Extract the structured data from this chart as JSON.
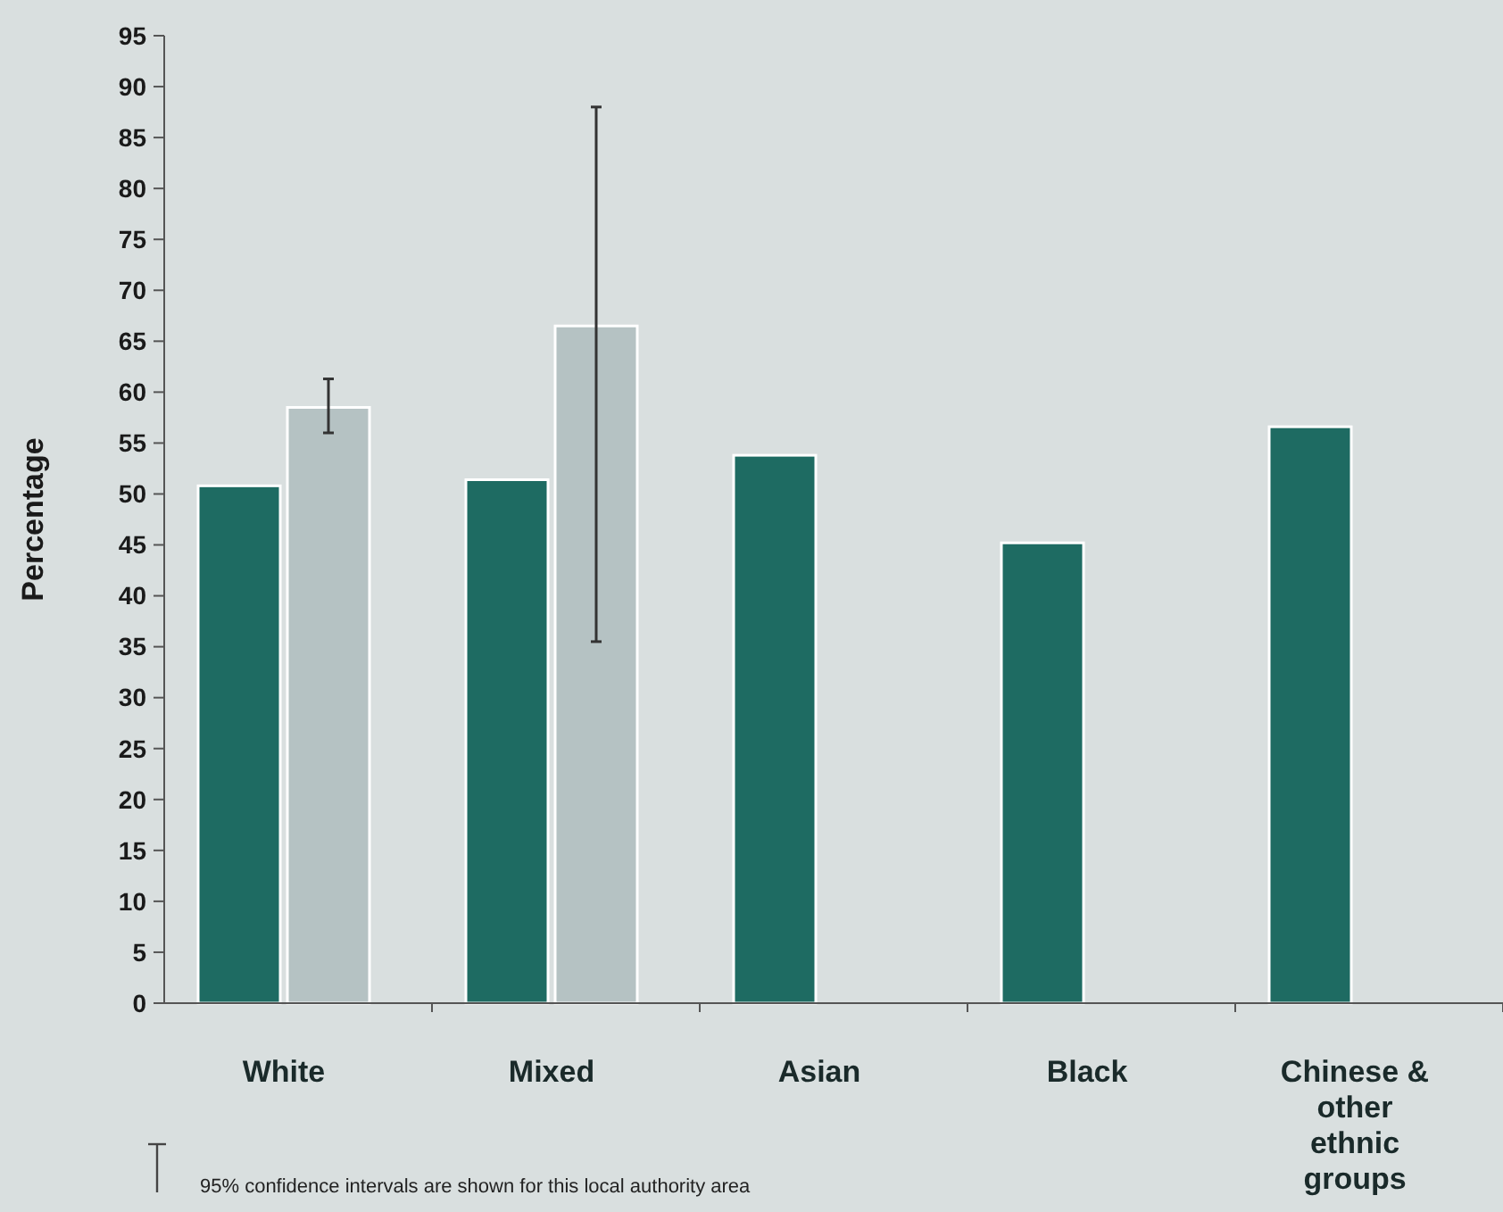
{
  "chart_data": {
    "type": "bar",
    "ylabel": "Percentage",
    "categories": [
      "White",
      "Mixed",
      "Asian",
      "Black",
      "Chinese & other ethnic groups"
    ],
    "series": [
      {
        "color": "#1e6b62",
        "values": [
          50.8,
          51.4,
          53.8,
          45.2,
          56.6
        ]
      },
      {
        "color": "#b5c2c3",
        "values": [
          58.5,
          66.5,
          null,
          null,
          null
        ],
        "errors": [
          [
            56,
            61.3
          ],
          [
            35.5,
            88
          ],
          null,
          null,
          null
        ]
      }
    ],
    "ylim": [
      0,
      95
    ],
    "yticks": [
      0,
      5,
      10,
      15,
      20,
      25,
      30,
      35,
      40,
      45,
      50,
      55,
      60,
      65,
      70,
      75,
      80,
      85,
      90,
      95
    ],
    "annotations": [
      "95% confidence intervals are shown for this local authority area"
    ]
  }
}
